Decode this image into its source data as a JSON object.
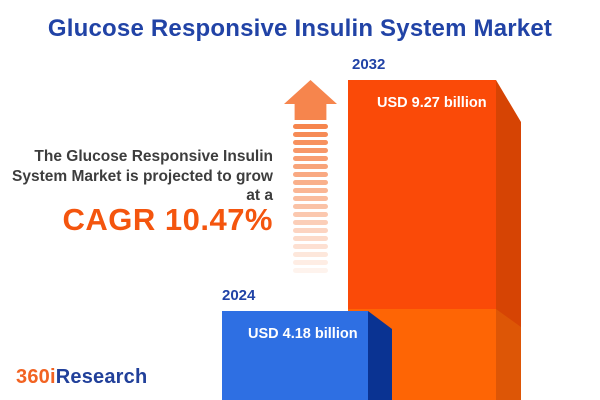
{
  "title": "Glucose Responsive Insulin System Market",
  "description": {
    "line1": "The Glucose Responsive Insulin",
    "line2": "System Market is projected to grow",
    "line3": "at a",
    "cagr": "CAGR 10.47%"
  },
  "bars": [
    {
      "year": "2024",
      "value_label": "USD 4.18 billion"
    },
    {
      "year": "2032",
      "value_label": "USD 9.27 billion"
    }
  ],
  "logo": {
    "prefix": "360i",
    "suffix": "Research"
  },
  "arrow": {
    "stripe_count": 19
  },
  "colors": {
    "title_blue": "#2143A6",
    "text_dark": "#3D3D3D",
    "cagr_orange": "#F4550E",
    "logo_orange": "#F26322",
    "logo_blue": "#21409A",
    "bar_2032_front_top": "#FA4A08",
    "bar_2032_front_bottom": "#FE6505",
    "bar_2032_side_top": "#D64404",
    "bar_2032_side_bottom": "#DD5606",
    "bar_2024_front": "#2E6FE3",
    "bar_2024_side": "#0A3392",
    "arrow_orange": "#F6854D"
  },
  "chart_data": {
    "type": "bar",
    "title": "Glucose Responsive Insulin System Market",
    "categories": [
      "2024",
      "2032"
    ],
    "values": [
      4.18,
      9.27
    ],
    "unit": "USD billion",
    "value_labels": [
      "USD 4.18 billion",
      "USD 9.27 billion"
    ],
    "cagr_percent": 10.47,
    "annotations": [
      "The Glucose Responsive Insulin System Market is projected to grow at a CAGR 10.47%"
    ],
    "legend": "none",
    "grid": false,
    "bar_colors": [
      "#2E6FE3",
      "#FA4A08"
    ]
  }
}
